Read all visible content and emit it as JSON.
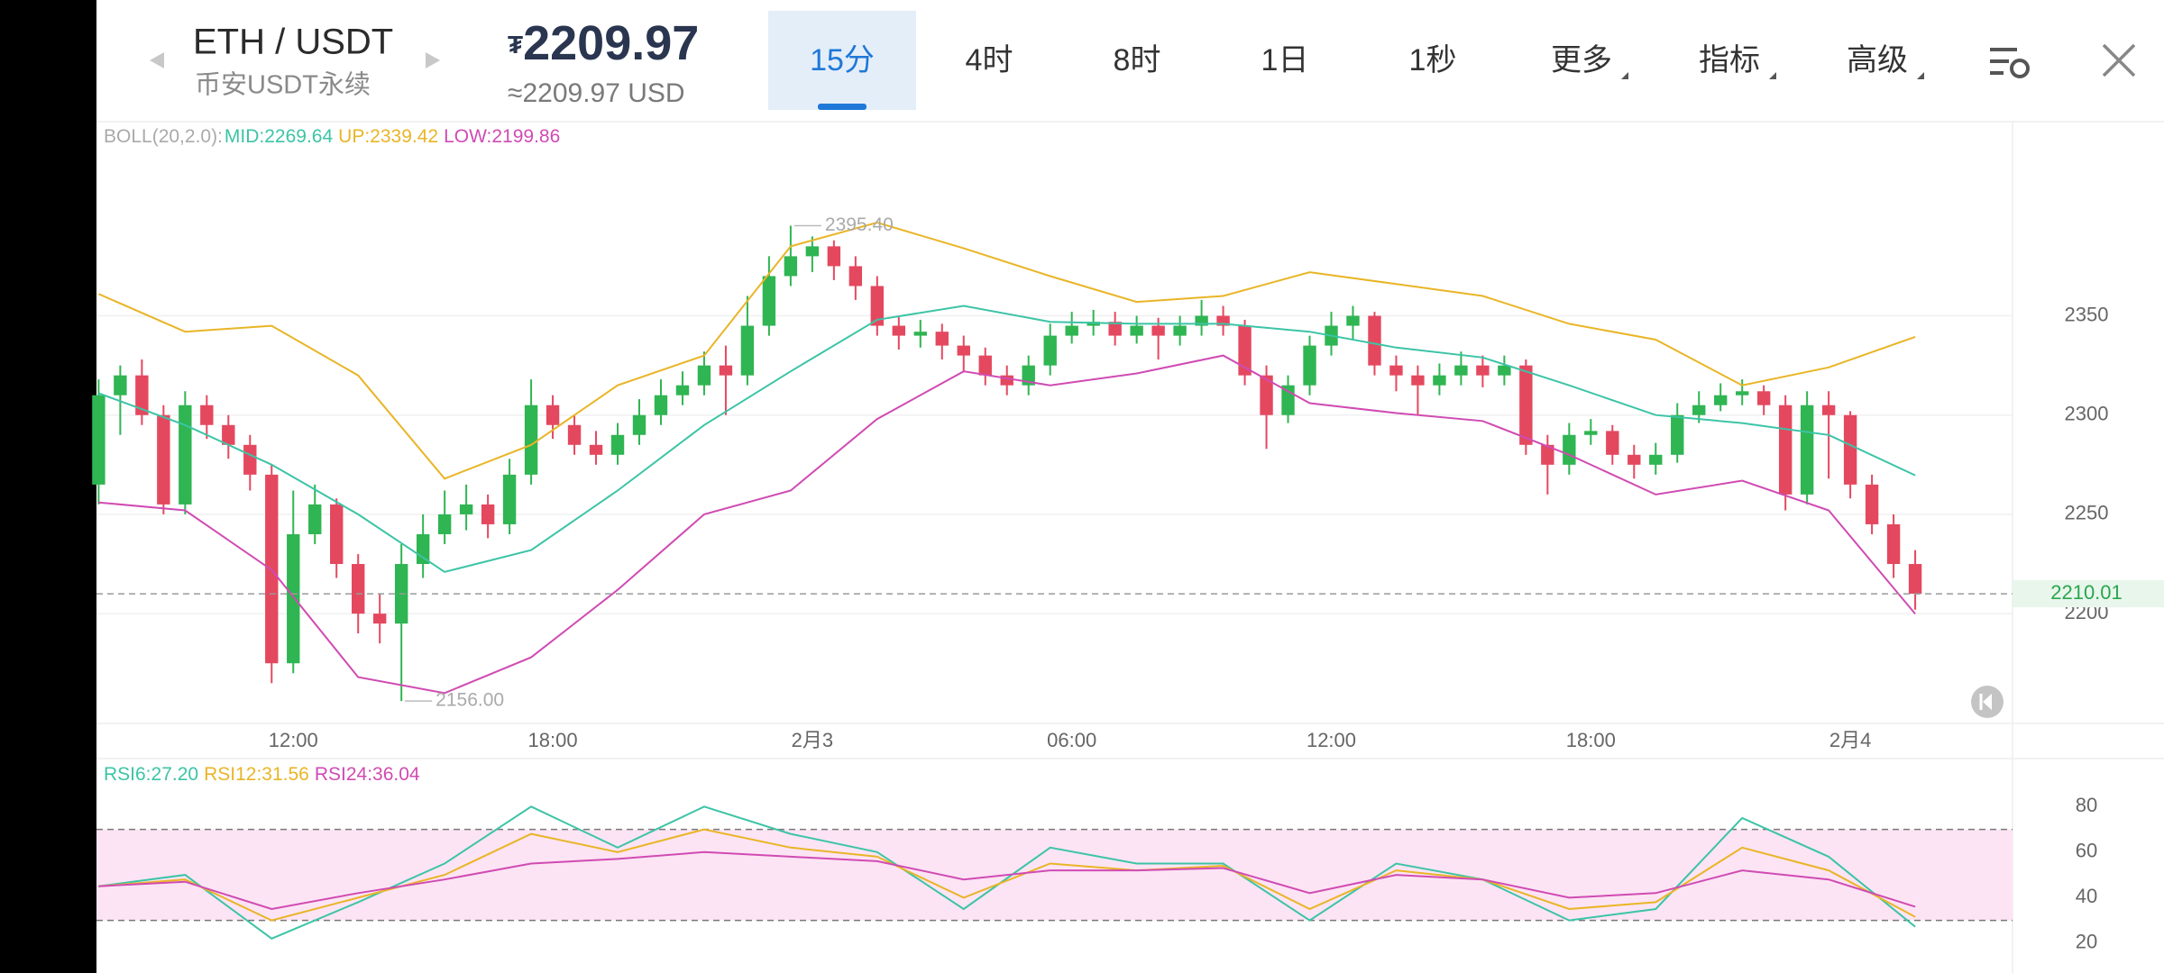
{
  "header": {
    "symbol": "ETH / USDT",
    "market": "币安USDT永续",
    "currency_sign": "₮",
    "price": 2209.97,
    "price_approx": "≈2209.97 USD",
    "tabs": [
      {
        "label": "15分",
        "active": true
      },
      {
        "label": "4时"
      },
      {
        "label": "8时"
      },
      {
        "label": "1日"
      },
      {
        "label": "1秒"
      },
      {
        "label": "更多",
        "dropdown": true
      },
      {
        "label": "指标",
        "dropdown": true
      },
      {
        "label": "高级",
        "dropdown": true
      }
    ]
  },
  "chart_data": [
    {
      "type": "candlestick",
      "indicator": "BOLL(20,2.0):",
      "up_color": "#2fb552",
      "down_color": "#e4485f",
      "open": [
        2265,
        2310,
        2320,
        2300,
        2255,
        2305,
        2295,
        2285,
        2270,
        2175,
        2240,
        2255,
        2225,
        2200,
        2195,
        2225,
        2240,
        2250,
        2255,
        2245,
        2270,
        2305,
        2295,
        2285,
        2280,
        2290,
        2300,
        2310,
        2315,
        2325,
        2320,
        2345,
        2370,
        2380,
        2385,
        2375,
        2365,
        2345,
        2340,
        2342,
        2335,
        2330,
        2320,
        2315,
        2325,
        2340,
        2345,
        2347,
        2340,
        2345,
        2340,
        2345,
        2350,
        2345,
        2320,
        2300,
        2315,
        2335,
        2345,
        2350,
        2325,
        2320,
        2315,
        2320,
        2325,
        2320,
        2325,
        2285,
        2275,
        2290,
        2292,
        2280,
        2275,
        2280,
        2300,
        2305,
        2310,
        2312,
        2305,
        2260,
        2305,
        2300,
        2265,
        2245,
        2225
      ],
      "high": [
        2318,
        2325,
        2328,
        2305,
        2312,
        2310,
        2300,
        2290,
        2275,
        2262,
        2265,
        2258,
        2230,
        2210,
        2235,
        2250,
        2262,
        2265,
        2260,
        2278,
        2318,
        2310,
        2300,
        2292,
        2296,
        2308,
        2318,
        2322,
        2332,
        2335,
        2360,
        2380,
        2395.4,
        2390,
        2388,
        2380,
        2370,
        2350,
        2348,
        2346,
        2340,
        2334,
        2325,
        2330,
        2346,
        2352,
        2353,
        2352,
        2350,
        2349,
        2350,
        2358,
        2355,
        2348,
        2325,
        2320,
        2340,
        2352,
        2355,
        2352,
        2330,
        2325,
        2326,
        2332,
        2330,
        2330,
        2328,
        2290,
        2296,
        2298,
        2295,
        2285,
        2286,
        2306,
        2312,
        2316,
        2318,
        2315,
        2310,
        2312,
        2312,
        2302,
        2270,
        2250,
        2232
      ],
      "low": [
        2255,
        2290,
        2295,
        2250,
        2250,
        2288,
        2278,
        2262,
        2165,
        2170,
        2235,
        2218,
        2190,
        2185,
        2156,
        2218,
        2235,
        2242,
        2238,
        2240,
        2265,
        2288,
        2280,
        2275,
        2275,
        2285,
        2295,
        2305,
        2310,
        2300,
        2315,
        2340,
        2365,
        2372,
        2368,
        2358,
        2340,
        2333,
        2334,
        2328,
        2322,
        2315,
        2310,
        2310,
        2320,
        2336,
        2340,
        2335,
        2336,
        2328,
        2335,
        2340,
        2340,
        2315,
        2283,
        2296,
        2310,
        2330,
        2338,
        2320,
        2312,
        2300,
        2310,
        2315,
        2314,
        2315,
        2280,
        2260,
        2270,
        2285,
        2275,
        2268,
        2270,
        2276,
        2296,
        2302,
        2305,
        2300,
        2252,
        2255,
        2268,
        2258,
        2240,
        2218,
        2202
      ],
      "close": [
        2310,
        2320,
        2300,
        2255,
        2305,
        2295,
        2285,
        2270,
        2175,
        2240,
        2255,
        2225,
        2200,
        2195,
        2225,
        2240,
        2250,
        2255,
        2245,
        2270,
        2305,
        2295,
        2285,
        2280,
        2290,
        2300,
        2310,
        2315,
        2325,
        2320,
        2345,
        2370,
        2380,
        2385,
        2375,
        2365,
        2345,
        2340,
        2342,
        2335,
        2330,
        2320,
        2315,
        2325,
        2340,
        2345,
        2347,
        2340,
        2345,
        2340,
        2345,
        2350,
        2345,
        2320,
        2300,
        2315,
        2335,
        2345,
        2350,
        2325,
        2320,
        2315,
        2320,
        2325,
        2320,
        2325,
        2285,
        2275,
        2290,
        2292,
        2280,
        2275,
        2280,
        2300,
        2305,
        2310,
        2312,
        2305,
        2260,
        2305,
        2300,
        2265,
        2245,
        2225,
        2210.01
      ],
      "overlays": [
        {
          "name": "MID:2269.64",
          "color": "#3cc4a6",
          "x": [
            0,
            4,
            8,
            12,
            16,
            20,
            24,
            28,
            32,
            36,
            40,
            44,
            48,
            52,
            56,
            60,
            64,
            68,
            72,
            76,
            80,
            84
          ],
          "values": [
            2311,
            2295,
            2275,
            2250,
            2221,
            2232,
            2262,
            2295,
            2322,
            2348,
            2355,
            2347,
            2346,
            2346,
            2342,
            2334,
            2329,
            2315,
            2300,
            2296,
            2290,
            2269.64
          ]
        },
        {
          "name": "UP:2339.42",
          "color": "#e9b526",
          "x": [
            0,
            4,
            8,
            12,
            16,
            20,
            24,
            28,
            32,
            36,
            40,
            44,
            48,
            52,
            56,
            60,
            64,
            68,
            72,
            76,
            80,
            84
          ],
          "values": [
            2361,
            2342,
            2345,
            2320,
            2268,
            2285,
            2315,
            2330,
            2385,
            2397,
            2384,
            2370,
            2357,
            2360,
            2372,
            2366,
            2360,
            2346,
            2338,
            2315,
            2324,
            2339.42
          ]
        },
        {
          "name": "LOW:2199.86",
          "color": "#d04bb3",
          "x": [
            0,
            4,
            8,
            12,
            16,
            20,
            24,
            28,
            32,
            36,
            40,
            44,
            48,
            52,
            56,
            60,
            64,
            68,
            72,
            76,
            80,
            84
          ],
          "values": [
            2256,
            2252,
            2222,
            2168,
            2160,
            2178,
            2212,
            2250,
            2262,
            2298,
            2322,
            2315,
            2321,
            2330,
            2306,
            2301,
            2297,
            2280,
            2260,
            2267,
            2252,
            2199.86
          ]
        }
      ],
      "annotations": [
        {
          "index": 32,
          "label": "2395.40"
        },
        {
          "index": 14,
          "label": "2156.00"
        }
      ],
      "xlim": [
        -0.1,
        88.5
      ],
      "xticks": [
        {
          "value": 9,
          "label": "12:00"
        },
        {
          "value": 21,
          "label": "18:00"
        },
        {
          "value": 33,
          "label": "2月3"
        },
        {
          "value": 45,
          "label": "06:00"
        },
        {
          "value": 57,
          "label": "12:00"
        },
        {
          "value": 69,
          "label": "18:00"
        },
        {
          "value": 81,
          "label": "2月4"
        }
      ],
      "ylim": [
        2144.7,
        2447.8
      ],
      "yticks": [
        2200,
        2250,
        2300,
        2350
      ],
      "grid": true
    },
    {
      "type": "line",
      "series": [
        {
          "name": "RSI6:27.20",
          "color": "#3cc4a6",
          "x": [
            0,
            4,
            8,
            12,
            16,
            20,
            24,
            28,
            32,
            36,
            40,
            44,
            48,
            52,
            56,
            60,
            64,
            68,
            72,
            76,
            80,
            84
          ],
          "values": [
            45,
            50,
            22,
            38,
            55,
            80,
            62,
            80,
            68,
            60,
            35,
            62,
            55,
            55,
            30,
            55,
            48,
            30,
            35,
            75,
            58,
            27.2
          ]
        },
        {
          "name": "RSI12:31.56",
          "color": "#e9b526",
          "x": [
            0,
            4,
            8,
            12,
            16,
            20,
            24,
            28,
            32,
            36,
            40,
            44,
            48,
            52,
            56,
            60,
            64,
            68,
            72,
            76,
            80,
            84
          ],
          "values": [
            45,
            48,
            30,
            40,
            50,
            68,
            60,
            70,
            62,
            58,
            40,
            55,
            52,
            54,
            35,
            52,
            48,
            35,
            38,
            62,
            52,
            31.56
          ]
        },
        {
          "name": "RSI24:36.04",
          "color": "#d04bb3",
          "x": [
            0,
            4,
            8,
            12,
            16,
            20,
            24,
            28,
            32,
            36,
            40,
            44,
            48,
            52,
            56,
            60,
            64,
            68,
            72,
            76,
            80,
            84
          ],
          "values": [
            45,
            47,
            35,
            42,
            48,
            55,
            57,
            60,
            58,
            56,
            48,
            52,
            52,
            53,
            42,
            50,
            48,
            40,
            42,
            52,
            48,
            36.04
          ]
        }
      ],
      "xlim": [
        -0.1,
        88.5
      ],
      "ylim": [
        6.9,
        101.1
      ],
      "yticks": [
        20,
        40,
        60,
        80
      ],
      "bands": [
        30,
        70
      ],
      "band_color": "#fce4f4",
      "grid": false
    }
  ]
}
